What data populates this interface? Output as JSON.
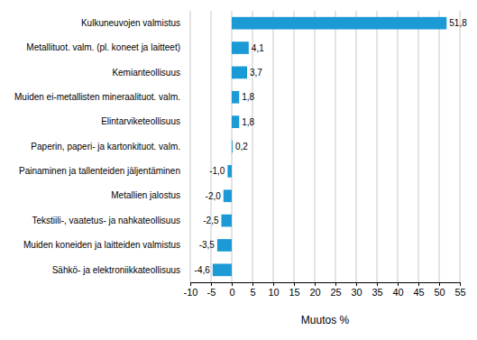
{
  "chart_data": {
    "type": "bar",
    "orientation": "horizontal",
    "categories": [
      "Kulkuneuvojen valmistus",
      "Metallituot. valm. (pl. koneet ja laitteet)",
      "Kemianteollisuus",
      "Muiden ei-metallisten mineraalituot. valm.",
      "Elintarviketeollisuus",
      "Paperin, paperi- ja kartonkituot. valm.",
      "Painaminen ja tallenteiden jäljentäminen",
      "Metallien jalostus",
      "Tekstiili-, vaatetus- ja nahkateollisuus",
      "Muiden koneiden ja laitteiden valmistus",
      "Sähkö- ja elektroniikkateollisuus"
    ],
    "values": [
      51.8,
      4.1,
      3.7,
      1.8,
      1.8,
      0.2,
      -1.0,
      -2.0,
      -2.5,
      -3.5,
      -4.6
    ],
    "value_labels": [
      "51,8",
      "4,1",
      "3,7",
      "1,8",
      "1,8",
      "0,2",
      "-1,0",
      "-2,0",
      "-2,5",
      "-3,5",
      "-4,6"
    ],
    "data_labels": true,
    "color": "#1b9ad6",
    "x_label": "Muutos %",
    "xlim": [
      -10,
      55
    ],
    "xticks": [
      -10,
      -5,
      0,
      5,
      10,
      15,
      20,
      25,
      30,
      35,
      40,
      45,
      50,
      55
    ],
    "grid": true
  }
}
